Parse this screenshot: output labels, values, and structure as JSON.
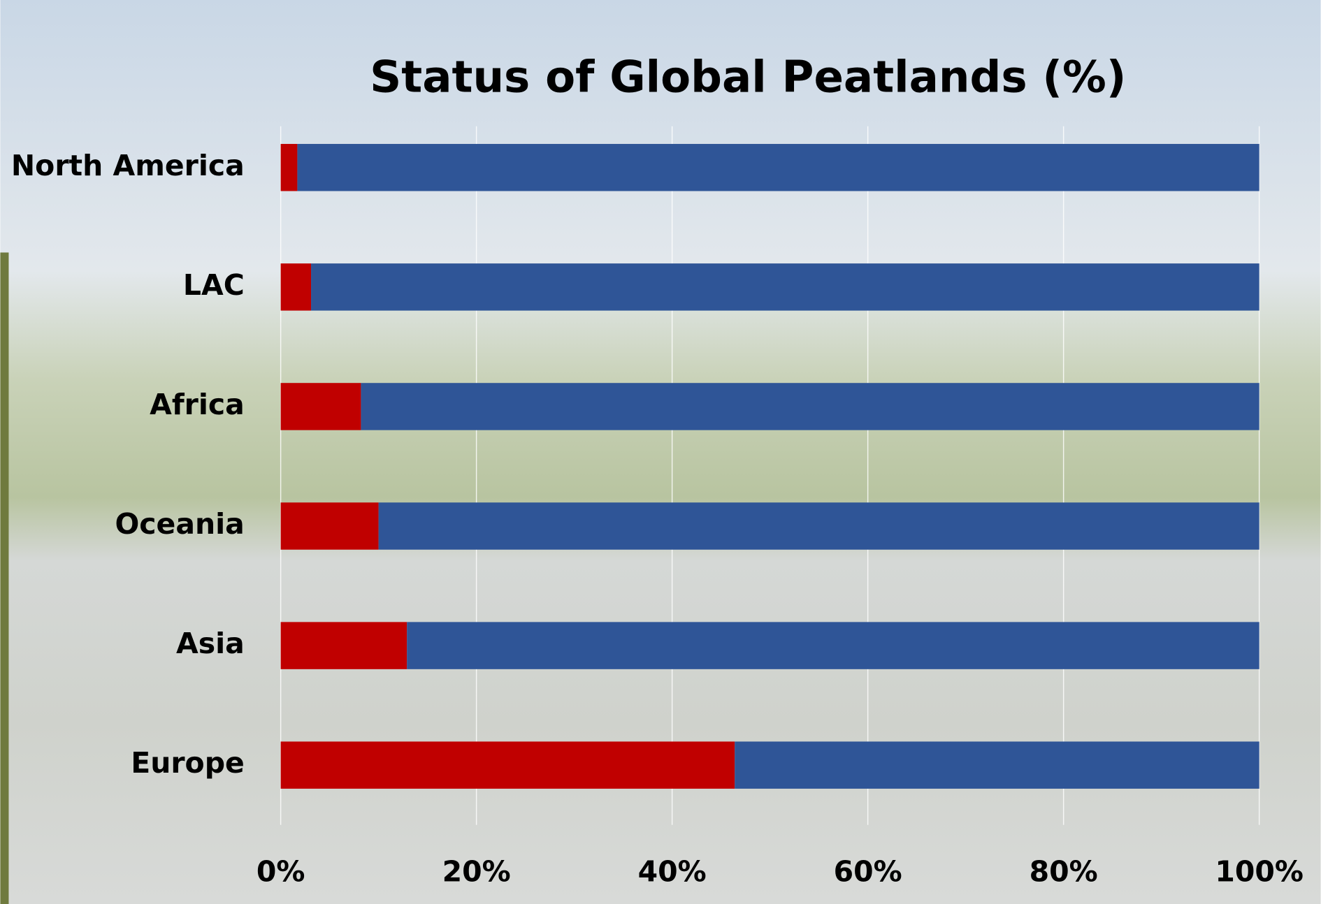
{
  "chart_data": {
    "type": "stacked-bar-horizontal",
    "title": "Status of Global Peatlands (%)",
    "categories": [
      "North America",
      "LAC",
      "Africa",
      "Oceania",
      "Asia",
      "Europe"
    ],
    "series": [
      {
        "color": "#c00000",
        "values": [
          1.7,
          3.1,
          8.2,
          10,
          12.9,
          46.4
        ]
      },
      {
        "color": "#2f5597",
        "values": [
          98.3,
          96.9,
          91.8,
          90,
          87.1,
          53.6
        ]
      }
    ],
    "xlim": [
      0,
      100
    ],
    "xticks": [
      {
        "value": 0,
        "label": "0%"
      },
      {
        "value": 20,
        "label": "20%"
      },
      {
        "value": 40,
        "label": "40%"
      },
      {
        "value": 60,
        "label": "60%"
      },
      {
        "value": 80,
        "label": "80%"
      },
      {
        "value": 100,
        "label": "100%"
      }
    ],
    "grid": true
  }
}
